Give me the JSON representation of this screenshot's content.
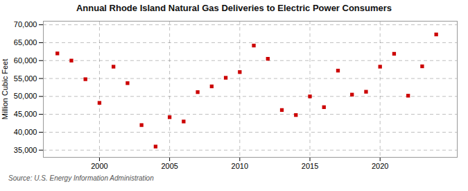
{
  "chart_data": {
    "type": "scatter",
    "title": "Annual Rhode Island Natural Gas Deliveries to Electric Power Consumers",
    "ylabel": "Million Cubic Feet",
    "source": "Source: U.S. Energy Information Administration",
    "color": "#CC0000",
    "marker": "square",
    "grid": true,
    "xlim": [
      1996.0,
      2025.5
    ],
    "ylim": [
      33000,
      71000
    ],
    "xticks": [
      2000,
      2005,
      2010,
      2015,
      2020
    ],
    "yticks": [
      {
        "value": 35000,
        "label": "35,000"
      },
      {
        "value": 40000,
        "label": "40,000"
      },
      {
        "value": 45000,
        "label": "45,000"
      },
      {
        "value": 50000,
        "label": "50,000"
      },
      {
        "value": 55000,
        "label": "55,000"
      },
      {
        "value": 60000,
        "label": "60,000"
      },
      {
        "value": 65000,
        "label": "65,000"
      },
      {
        "value": 70000,
        "label": "70,000"
      }
    ],
    "x": [
      1997,
      1998,
      1999,
      2000,
      2001,
      2002,
      2003,
      2004,
      2005,
      2006,
      2007,
      2008,
      2009,
      2010,
      2011,
      2012,
      2013,
      2014,
      2015,
      2016,
      2017,
      2018,
      2019,
      2020,
      2021,
      2022,
      2023,
      2024
    ],
    "values": [
      62000,
      60000,
      54800,
      48200,
      58300,
      53700,
      42000,
      36000,
      44200,
      43000,
      51200,
      52800,
      55200,
      56800,
      64200,
      60500,
      46200,
      44800,
      50000,
      47000,
      57200,
      50500,
      51300,
      58300,
      61900,
      50200,
      58400,
      67300
    ]
  }
}
